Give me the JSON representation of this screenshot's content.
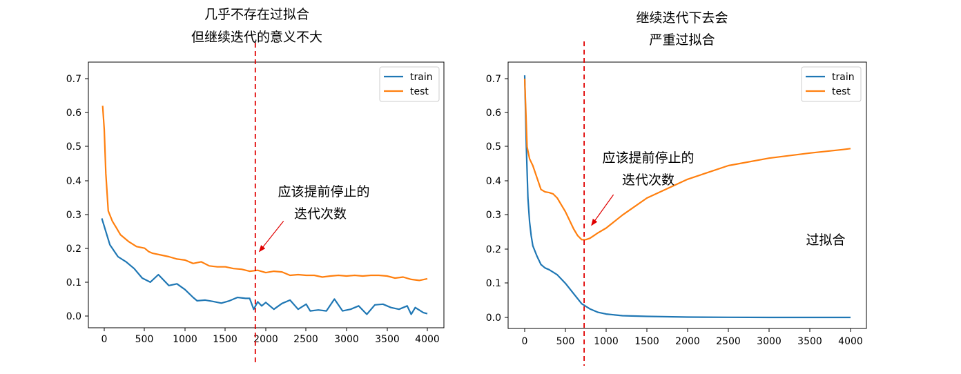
{
  "colors": {
    "train": "#1f77b4",
    "test": "#ff7f0e",
    "annotation": "#e00000"
  },
  "chart_data": [
    {
      "type": "line",
      "title_lines": [
        "几乎不存在过拟合",
        "但继续迭代的意义不大"
      ],
      "annotation_lines": [
        "应该提前停止的",
        "迭代次数"
      ],
      "xlim": [
        -200,
        4200
      ],
      "ylim": [
        -0.035,
        0.745
      ],
      "xticks": [
        "0",
        "500",
        "1000",
        "1500",
        "2000",
        "2500",
        "3000",
        "3500",
        "4000"
      ],
      "yticks": [
        "0.0",
        "0.1",
        "0.2",
        "0.3",
        "0.4",
        "0.5",
        "0.6",
        "0.7"
      ],
      "legend": [
        "train",
        "test"
      ],
      "legend_position": "top-right",
      "stop_marker_x": 1870,
      "arrow_tip": [
        1920,
        0.19
      ],
      "arrow_tail": [
        2220,
        0.28
      ],
      "series": [
        {
          "name": "train",
          "x": [
            -30,
            70,
            170,
            270,
            370,
            470,
            570,
            670,
            800,
            900,
            1000,
            1100,
            1150,
            1250,
            1350,
            1450,
            1550,
            1650,
            1750,
            1800,
            1850,
            1900,
            1950,
            2000,
            2100,
            2200,
            2300,
            2400,
            2500,
            2550,
            2650,
            2750,
            2850,
            2950,
            3050,
            3150,
            3250,
            3350,
            3450,
            3550,
            3650,
            3750,
            3800,
            3850,
            3950,
            4000
          ],
          "y": [
            0.288,
            0.21,
            0.175,
            0.16,
            0.14,
            0.112,
            0.1,
            0.122,
            0.09,
            0.095,
            0.078,
            0.055,
            0.045,
            0.047,
            0.043,
            0.038,
            0.045,
            0.055,
            0.052,
            0.052,
            0.02,
            0.042,
            0.03,
            0.04,
            0.02,
            0.037,
            0.047,
            0.02,
            0.035,
            0.015,
            0.018,
            0.015,
            0.05,
            0.015,
            0.02,
            0.03,
            0.005,
            0.033,
            0.035,
            0.025,
            0.02,
            0.03,
            0.005,
            0.025,
            0.01,
            0.007
          ]
        },
        {
          "name": "test",
          "x": [
            -20,
            0,
            20,
            50,
            100,
            150,
            200,
            300,
            400,
            500,
            550,
            600,
            700,
            800,
            900,
            1000,
            1100,
            1200,
            1300,
            1400,
            1500,
            1600,
            1700,
            1800,
            1900,
            2000,
            2100,
            2200,
            2300,
            2400,
            2500,
            2600,
            2700,
            2800,
            2900,
            3000,
            3100,
            3200,
            3300,
            3400,
            3500,
            3600,
            3700,
            3800,
            3900,
            4000
          ],
          "y": [
            0.62,
            0.55,
            0.42,
            0.31,
            0.28,
            0.26,
            0.24,
            0.22,
            0.205,
            0.2,
            0.19,
            0.185,
            0.18,
            0.175,
            0.168,
            0.165,
            0.155,
            0.16,
            0.148,
            0.145,
            0.145,
            0.14,
            0.138,
            0.132,
            0.135,
            0.128,
            0.132,
            0.13,
            0.12,
            0.122,
            0.12,
            0.12,
            0.115,
            0.118,
            0.12,
            0.118,
            0.12,
            0.118,
            0.12,
            0.12,
            0.118,
            0.112,
            0.115,
            0.108,
            0.105,
            0.11
          ]
        }
      ]
    },
    {
      "type": "line",
      "title_lines": [
        "继续迭代下去会",
        "严重过拟合"
      ],
      "annotation_lines": [
        "应该提前停止的",
        "迭代次数"
      ],
      "side_label": "过拟合",
      "xlim": [
        -200,
        4200
      ],
      "ylim": [
        -0.035,
        0.745
      ],
      "xticks": [
        "0",
        "500",
        "1000",
        "1500",
        "2000",
        "2500",
        "3000",
        "3500",
        "4000"
      ],
      "yticks": [
        "0.0",
        "0.1",
        "0.2",
        "0.3",
        "0.4",
        "0.5",
        "0.6",
        "0.7"
      ],
      "legend": [
        "train",
        "test"
      ],
      "legend_position": "top-right",
      "stop_marker_x": 730,
      "arrow_tip": [
        820,
        0.27
      ],
      "arrow_tail": [
        1090,
        0.36
      ],
      "series": [
        {
          "name": "train",
          "x": [
            0,
            20,
            40,
            60,
            80,
            100,
            150,
            200,
            250,
            300,
            400,
            500,
            600,
            700,
            800,
            900,
            1000,
            1200,
            1500,
            2000,
            2500,
            3000,
            3500,
            4000
          ],
          "y": [
            0.71,
            0.5,
            0.35,
            0.28,
            0.24,
            0.21,
            0.18,
            0.155,
            0.145,
            0.14,
            0.125,
            0.1,
            0.07,
            0.04,
            0.025,
            0.015,
            0.01,
            0.005,
            0.003,
            0.001,
            0.0005,
            0.0,
            0.0,
            0.0
          ]
        },
        {
          "name": "test",
          "x": [
            0,
            30,
            60,
            100,
            150,
            200,
            250,
            300,
            350,
            400,
            450,
            500,
            550,
            600,
            650,
            700,
            750,
            800,
            850,
            900,
            1000,
            1200,
            1500,
            2000,
            2500,
            3000,
            3500,
            3900,
            4000
          ],
          "y": [
            0.7,
            0.5,
            0.465,
            0.445,
            0.41,
            0.375,
            0.368,
            0.366,
            0.362,
            0.35,
            0.33,
            0.31,
            0.285,
            0.26,
            0.24,
            0.228,
            0.228,
            0.232,
            0.24,
            0.248,
            0.262,
            0.3,
            0.35,
            0.405,
            0.445,
            0.467,
            0.482,
            0.492,
            0.495
          ]
        }
      ]
    }
  ]
}
